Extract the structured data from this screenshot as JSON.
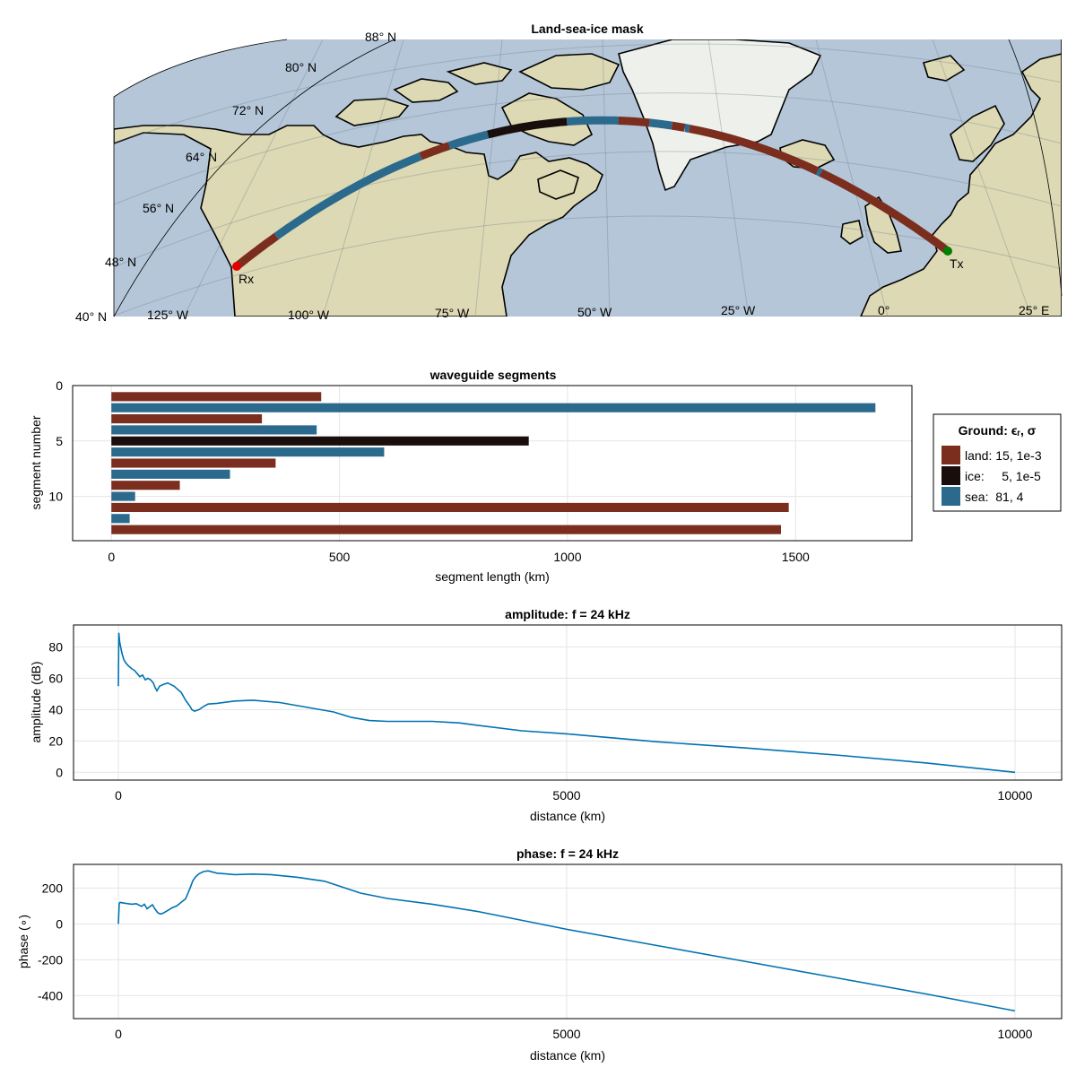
{
  "chart_data": [
    {
      "type": "map",
      "title": "Land-sea-ice mask",
      "graticule_lat_labels": [
        "40° N",
        "48° N",
        "56° N",
        "64° N",
        "72° N",
        "80° N",
        "88° N"
      ],
      "graticule_lon_labels": [
        "125° W",
        "100° W",
        "75° W",
        "50° W",
        "25° W",
        "0°",
        "25° E"
      ],
      "path_markers": [
        {
          "label": "Rx",
          "color": "#e00000"
        },
        {
          "label": "Tx",
          "color": "#008000"
        }
      ],
      "ground_colors": {
        "land": "#7b2e1e",
        "ice": "#1a0e0c",
        "sea": "#2b6a8c"
      },
      "map_colors": {
        "ocean": "#b4c6d8",
        "land": "#ddd9b4",
        "ice": "#eef0ec"
      }
    },
    {
      "type": "bar",
      "orientation": "horizontal",
      "title": "waveguide segments",
      "xlabel": "segment length (km)",
      "ylabel": "segment number",
      "xlim": [
        -85,
        1755
      ],
      "ylim": [
        14,
        0
      ],
      "xticks": [
        "0",
        "500",
        "1000",
        "1500"
      ],
      "yticks": [
        "0",
        "5",
        "10"
      ],
      "grid": true,
      "legend_title": "Ground: ϵᵣ, σ",
      "legend_position": "right",
      "legend": [
        {
          "key": "land",
          "label": "land: 15, 1e-3",
          "color": "#7b2e1e"
        },
        {
          "key": "ice",
          "label": "ice:     5, 1e-5",
          "color": "#1a0e0c"
        },
        {
          "key": "sea",
          "label": "sea:  81, 4",
          "color": "#2b6a8c"
        }
      ],
      "segments": [
        {
          "n": 1,
          "ground": "land",
          "length": 460
        },
        {
          "n": 2,
          "ground": "sea",
          "length": 1675
        },
        {
          "n": 3,
          "ground": "land",
          "length": 330
        },
        {
          "n": 4,
          "ground": "sea",
          "length": 450
        },
        {
          "n": 5,
          "ground": "ice",
          "length": 915
        },
        {
          "n": 6,
          "ground": "sea",
          "length": 598
        },
        {
          "n": 7,
          "ground": "land",
          "length": 360
        },
        {
          "n": 8,
          "ground": "sea",
          "length": 260
        },
        {
          "n": 9,
          "ground": "land",
          "length": 150
        },
        {
          "n": 10,
          "ground": "sea",
          "length": 52
        },
        {
          "n": 11,
          "ground": "land",
          "length": 1485
        },
        {
          "n": 12,
          "ground": "sea",
          "length": 40
        },
        {
          "n": 13,
          "ground": "land",
          "length": 1468
        }
      ]
    },
    {
      "type": "line",
      "title": "amplitude: f = 24 kHz",
      "xlabel": "distance (km)",
      "ylabel": "amplitude (dB)",
      "xlim": [
        -500,
        10520
      ],
      "ylim": [
        -5,
        94
      ],
      "xticks": [
        "0",
        "5000",
        "10000"
      ],
      "yticks": [
        "0",
        "20",
        "40",
        "60",
        "80"
      ],
      "grid": true,
      "color": "#0072b2",
      "x": [
        0,
        5,
        15,
        40,
        60,
        80,
        110,
        150,
        180,
        210,
        240,
        270,
        300,
        330,
        360,
        390,
        410,
        430,
        460,
        500,
        550,
        620,
        700,
        750,
        800,
        820,
        850,
        900,
        950,
        1000,
        1100,
        1300,
        1500,
        1800,
        2000,
        2200,
        2400,
        2600,
        2800,
        3000,
        3200,
        3500,
        3800,
        4000,
        4500,
        5000,
        5500,
        6000,
        7000,
        8000,
        9000,
        10000
      ],
      "y": [
        55,
        89,
        83,
        76,
        72,
        70,
        68,
        66,
        65,
        63,
        61,
        62,
        59,
        60,
        59,
        57,
        54,
        52,
        55,
        56,
        57,
        55,
        51,
        46,
        42,
        40,
        39,
        40,
        42,
        43.5,
        44,
        45.5,
        46,
        44.5,
        42.5,
        40.5,
        38.5,
        35,
        33,
        32.5,
        32.5,
        32.5,
        31.5,
        30,
        26.5,
        24.5,
        22,
        19.5,
        15.5,
        11,
        6,
        0
      ]
    },
    {
      "type": "line",
      "title": "phase: f = 24 kHz",
      "xlabel": "distance (km)",
      "ylabel": "phase (∘)",
      "xlim": [
        -500,
        10520
      ],
      "ylim": [
        -528,
        332
      ],
      "xticks": [
        "0",
        "5000",
        "10000"
      ],
      "yticks": [
        "-400",
        "-200",
        "0",
        "200"
      ],
      "grid": true,
      "color": "#0072b2",
      "x": [
        0,
        5,
        10,
        20,
        80,
        150,
        200,
        230,
        260,
        290,
        320,
        350,
        380,
        410,
        440,
        470,
        500,
        550,
        600,
        650,
        700,
        750,
        800,
        830,
        860,
        900,
        950,
        1000,
        1100,
        1300,
        1500,
        1700,
        2000,
        2300,
        2500,
        2700,
        3000,
        3500,
        4000,
        4500,
        5000,
        6000,
        7000,
        8000,
        9000,
        10000
      ],
      "y": [
        0,
        60,
        115,
        120,
        115,
        110,
        113,
        105,
        98,
        110,
        85,
        96,
        107,
        82,
        62,
        55,
        60,
        75,
        90,
        100,
        120,
        140,
        200,
        240,
        262,
        280,
        292,
        296,
        283,
        275,
        278,
        275,
        260,
        238,
        205,
        172,
        142,
        110,
        70,
        20,
        -30,
        -120,
        -210,
        -300,
        -390,
        -485
      ]
    }
  ]
}
